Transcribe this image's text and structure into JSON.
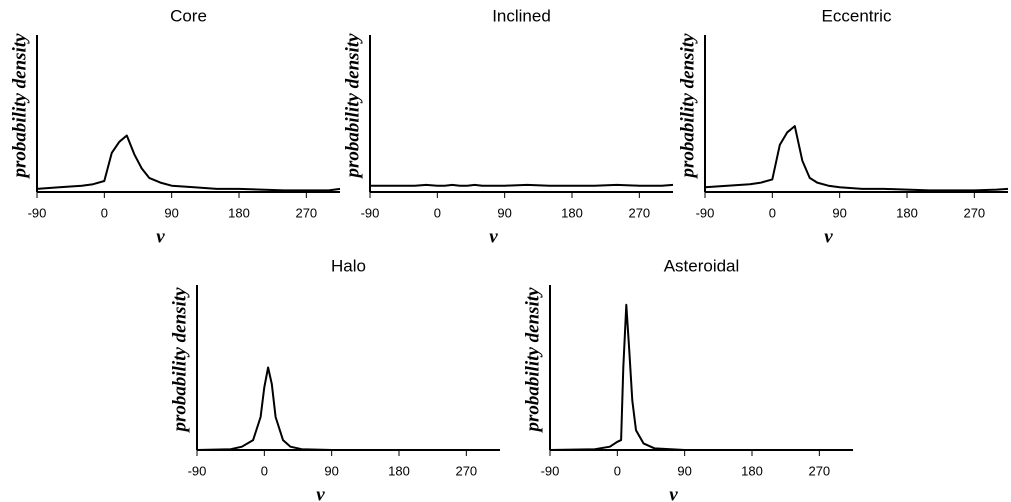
{
  "chart_data": [
    {
      "type": "line",
      "title": "Core",
      "xlabel": "v",
      "ylabel": "probability density",
      "color": "#000000",
      "xlim": [
        -90,
        315
      ],
      "xticks": [
        -90,
        0,
        90,
        180,
        270
      ],
      "ylim": [
        0,
        1
      ],
      "x": [
        -90,
        -60,
        -30,
        -15,
        0,
        10,
        20,
        30,
        40,
        50,
        60,
        75,
        90,
        120,
        150,
        180,
        210,
        240,
        270,
        300,
        315
      ],
      "values": [
        0.02,
        0.03,
        0.04,
        0.05,
        0.07,
        0.25,
        0.32,
        0.36,
        0.24,
        0.15,
        0.09,
        0.06,
        0.04,
        0.03,
        0.02,
        0.02,
        0.015,
        0.01,
        0.01,
        0.01,
        0.02
      ]
    },
    {
      "type": "line",
      "title": "Inclined",
      "xlabel": "v",
      "ylabel": "probability density",
      "color": "#000000",
      "xlim": [
        -90,
        315
      ],
      "xticks": [
        -90,
        0,
        90,
        180,
        270
      ],
      "ylim": [
        0,
        1
      ],
      "x": [
        -90,
        -60,
        -30,
        -15,
        0,
        10,
        20,
        30,
        40,
        50,
        60,
        75,
        90,
        120,
        150,
        180,
        210,
        240,
        270,
        300,
        315
      ],
      "values": [
        0.04,
        0.04,
        0.04,
        0.045,
        0.04,
        0.04,
        0.045,
        0.04,
        0.04,
        0.045,
        0.04,
        0.04,
        0.04,
        0.045,
        0.04,
        0.04,
        0.04,
        0.045,
        0.04,
        0.04,
        0.045
      ]
    },
    {
      "type": "line",
      "title": "Eccentric",
      "xlabel": "v",
      "ylabel": "probability density",
      "color": "#000000",
      "xlim": [
        -90,
        315
      ],
      "xticks": [
        -90,
        0,
        90,
        180,
        270
      ],
      "ylim": [
        0,
        1
      ],
      "x": [
        -90,
        -60,
        -30,
        -15,
        0,
        10,
        20,
        30,
        40,
        50,
        60,
        75,
        90,
        120,
        150,
        180,
        210,
        240,
        270,
        300,
        315
      ],
      "values": [
        0.03,
        0.04,
        0.05,
        0.06,
        0.08,
        0.3,
        0.38,
        0.42,
        0.2,
        0.09,
        0.06,
        0.04,
        0.03,
        0.02,
        0.02,
        0.015,
        0.01,
        0.01,
        0.01,
        0.015,
        0.02
      ]
    },
    {
      "type": "line",
      "title": "Halo",
      "xlabel": "v",
      "ylabel": "probability density",
      "color": "#000000",
      "xlim": [
        -90,
        315
      ],
      "xticks": [
        -90,
        0,
        90,
        180,
        270
      ],
      "ylim": [
        0,
        1
      ],
      "x": [
        -90,
        -45,
        -30,
        -15,
        -5,
        0,
        5,
        10,
        15,
        25,
        35,
        50,
        90,
        180,
        270,
        315
      ],
      "values": [
        0,
        0.005,
        0.02,
        0.06,
        0.2,
        0.38,
        0.5,
        0.4,
        0.2,
        0.06,
        0.02,
        0.005,
        0,
        0,
        0,
        0
      ]
    },
    {
      "type": "line",
      "title": "Asteroidal",
      "xlabel": "v",
      "ylabel": "probability density",
      "color": "#000000",
      "xlim": [
        -90,
        315
      ],
      "xticks": [
        -90,
        0,
        90,
        180,
        270
      ],
      "ylim": [
        0,
        1
      ],
      "x": [
        -90,
        -30,
        -10,
        0,
        5,
        8,
        12,
        16,
        20,
        25,
        35,
        50,
        90,
        180,
        270,
        315
      ],
      "values": [
        0,
        0.005,
        0.02,
        0.05,
        0.06,
        0.5,
        0.88,
        0.6,
        0.3,
        0.12,
        0.04,
        0.01,
        0,
        0,
        0,
        0
      ]
    }
  ]
}
